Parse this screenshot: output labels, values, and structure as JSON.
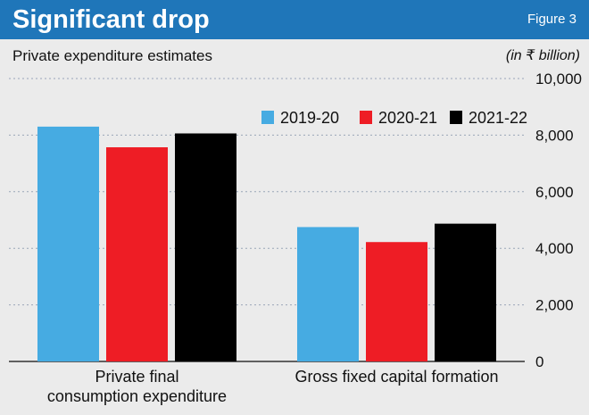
{
  "header": {
    "title": "Significant drop",
    "figure_label": "Figure 3"
  },
  "colors": {
    "header_bg": "#1f76b9",
    "background": "#ebebeb",
    "grid": "#9aa6b8",
    "series": [
      "#46abe2",
      "#ee1d25",
      "#000000"
    ]
  },
  "chart_data": {
    "type": "bar",
    "title": "Significant drop",
    "subtitle": "Private expenditure estimates",
    "unit_label": "(in ₹ billion)",
    "categories": [
      [
        "Private final",
        "consumption expenditure"
      ],
      [
        "Gross fixed capital formation"
      ]
    ],
    "series": [
      {
        "name": "2019-20",
        "values": [
          8300,
          4750
        ]
      },
      {
        "name": "2020-21",
        "values": [
          7570,
          4220
        ]
      },
      {
        "name": "2021-22",
        "values": [
          8060,
          4870
        ]
      }
    ],
    "ylim": [
      0,
      10000
    ],
    "yticks": [
      0,
      2000,
      4000,
      6000,
      8000,
      10000
    ],
    "ytick_labels": [
      "0",
      "2,000",
      "4,000",
      "6,000",
      "8,000",
      "10,000"
    ],
    "grid": true,
    "y_axis_position": "right",
    "legend_position": "top-right"
  }
}
